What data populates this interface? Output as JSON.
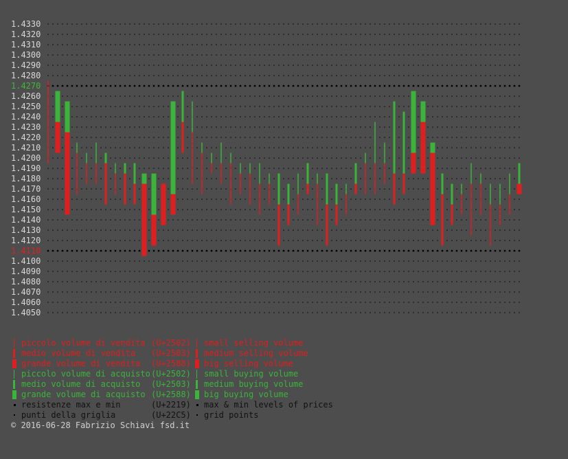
{
  "colors": {
    "background": "#4d4d4d",
    "tick": "#d9d9d9",
    "max_label": "#3cb83c",
    "min_label": "#e02020",
    "sell": "#e01e1e",
    "buy": "#3cb43c",
    "grid": "#1e1e1e",
    "legend_neutral": "#111111",
    "copyright": "#d0d0d0"
  },
  "chart_data": {
    "type": "bar",
    "ylim": [
      1.405,
      1.433
    ],
    "y_tick_step": 0.001,
    "y_tick_labels": [
      "1.4330",
      "1.4320",
      "1.4310",
      "1.4300",
      "1.4290",
      "1.4280",
      "1.4270",
      "1.4260",
      "1.4250",
      "1.4240",
      "1.4230",
      "1.4220",
      "1.4210",
      "1.4200",
      "1.4190",
      "1.4180",
      "1.4170",
      "1.4160",
      "1.4150",
      "1.4140",
      "1.4130",
      "1.4120",
      "1.4110",
      "1.4100",
      "1.4090",
      "1.4080",
      "1.4070",
      "1.4060",
      "1.4050"
    ],
    "max_level": 1.427,
    "min_level": 1.411,
    "num_columns": 50,
    "grid": true,
    "volume_levels": [
      "small",
      "medium",
      "big"
    ],
    "candles": [
      {
        "x": 0,
        "segments": [
          {
            "from": 1.4195,
            "to": 1.4275,
            "side": "sell",
            "volume": "small"
          }
        ]
      },
      {
        "x": 1,
        "segments": [
          {
            "from": 1.4205,
            "to": 1.4235,
            "side": "sell",
            "volume": "big"
          },
          {
            "from": 1.4235,
            "to": 1.4265,
            "side": "buy",
            "volume": "big"
          }
        ]
      },
      {
        "x": 2,
        "segments": [
          {
            "from": 1.4145,
            "to": 1.4225,
            "side": "sell",
            "volume": "big"
          },
          {
            "from": 1.4225,
            "to": 1.4255,
            "side": "buy",
            "volume": "big"
          }
        ]
      },
      {
        "x": 3,
        "segments": [
          {
            "from": 1.4165,
            "to": 1.4205,
            "side": "sell",
            "volume": "small"
          },
          {
            "from": 1.4205,
            "to": 1.4215,
            "side": "buy",
            "volume": "small"
          }
        ]
      },
      {
        "x": 4,
        "segments": [
          {
            "from": 1.4175,
            "to": 1.4195,
            "side": "sell",
            "volume": "small"
          },
          {
            "from": 1.4195,
            "to": 1.4205,
            "side": "buy",
            "volume": "small"
          }
        ]
      },
      {
        "x": 5,
        "segments": [
          {
            "from": 1.4175,
            "to": 1.4195,
            "side": "sell",
            "volume": "small"
          },
          {
            "from": 1.4195,
            "to": 1.4215,
            "side": "buy",
            "volume": "small"
          }
        ]
      },
      {
        "x": 6,
        "segments": [
          {
            "from": 1.4155,
            "to": 1.4195,
            "side": "sell",
            "volume": "medium"
          },
          {
            "from": 1.4195,
            "to": 1.4205,
            "side": "buy",
            "volume": "medium"
          }
        ]
      },
      {
        "x": 7,
        "segments": [
          {
            "from": 1.4165,
            "to": 1.4185,
            "side": "sell",
            "volume": "small"
          },
          {
            "from": 1.4185,
            "to": 1.4195,
            "side": "buy",
            "volume": "small"
          }
        ]
      },
      {
        "x": 8,
        "segments": [
          {
            "from": 1.4155,
            "to": 1.4185,
            "side": "sell",
            "volume": "medium"
          },
          {
            "from": 1.4185,
            "to": 1.4195,
            "side": "buy",
            "volume": "medium"
          }
        ]
      },
      {
        "x": 9,
        "segments": [
          {
            "from": 1.4155,
            "to": 1.4175,
            "side": "sell",
            "volume": "medium"
          },
          {
            "from": 1.4175,
            "to": 1.4195,
            "side": "buy",
            "volume": "medium"
          }
        ]
      },
      {
        "x": 10,
        "segments": [
          {
            "from": 1.4105,
            "to": 1.4175,
            "side": "sell",
            "volume": "big"
          },
          {
            "from": 1.4175,
            "to": 1.4185,
            "side": "buy",
            "volume": "big"
          }
        ]
      },
      {
        "x": 11,
        "segments": [
          {
            "from": 1.4115,
            "to": 1.4145,
            "side": "sell",
            "volume": "big"
          },
          {
            "from": 1.4145,
            "to": 1.4185,
            "side": "buy",
            "volume": "big"
          }
        ]
      },
      {
        "x": 12,
        "segments": [
          {
            "from": 1.4135,
            "to": 1.4175,
            "side": "sell",
            "volume": "big"
          }
        ]
      },
      {
        "x": 13,
        "segments": [
          {
            "from": 1.4145,
            "to": 1.4165,
            "side": "sell",
            "volume": "big"
          },
          {
            "from": 1.4165,
            "to": 1.4255,
            "side": "buy",
            "volume": "big"
          }
        ]
      },
      {
        "x": 14,
        "segments": [
          {
            "from": 1.4205,
            "to": 1.4235,
            "side": "sell",
            "volume": "medium"
          },
          {
            "from": 1.4235,
            "to": 1.4265,
            "side": "buy",
            "volume": "medium"
          }
        ]
      },
      {
        "x": 15,
        "segments": [
          {
            "from": 1.4175,
            "to": 1.4225,
            "side": "sell",
            "volume": "small"
          },
          {
            "from": 1.4225,
            "to": 1.4255,
            "side": "buy",
            "volume": "small"
          }
        ]
      },
      {
        "x": 16,
        "segments": [
          {
            "from": 1.4165,
            "to": 1.4205,
            "side": "sell",
            "volume": "small"
          },
          {
            "from": 1.4205,
            "to": 1.4215,
            "side": "buy",
            "volume": "small"
          }
        ]
      },
      {
        "x": 17,
        "segments": [
          {
            "from": 1.4185,
            "to": 1.4195,
            "side": "sell",
            "volume": "small"
          },
          {
            "from": 1.4195,
            "to": 1.4205,
            "side": "buy",
            "volume": "small"
          }
        ]
      },
      {
        "x": 18,
        "segments": [
          {
            "from": 1.4175,
            "to": 1.4195,
            "side": "sell",
            "volume": "small"
          },
          {
            "from": 1.4195,
            "to": 1.4215,
            "side": "buy",
            "volume": "small"
          }
        ]
      },
      {
        "x": 19,
        "segments": [
          {
            "from": 1.4155,
            "to": 1.4195,
            "side": "sell",
            "volume": "small"
          },
          {
            "from": 1.4195,
            "to": 1.4205,
            "side": "buy",
            "volume": "small"
          }
        ]
      },
      {
        "x": 20,
        "segments": [
          {
            "from": 1.4165,
            "to": 1.4185,
            "side": "sell",
            "volume": "small"
          },
          {
            "from": 1.4185,
            "to": 1.4195,
            "side": "buy",
            "volume": "small"
          }
        ]
      },
      {
        "x": 21,
        "segments": [
          {
            "from": 1.4155,
            "to": 1.4185,
            "side": "sell",
            "volume": "small"
          },
          {
            "from": 1.4185,
            "to": 1.4195,
            "side": "buy",
            "volume": "small"
          }
        ]
      },
      {
        "x": 22,
        "segments": [
          {
            "from": 1.4145,
            "to": 1.4175,
            "side": "sell",
            "volume": "small"
          },
          {
            "from": 1.4175,
            "to": 1.4195,
            "side": "buy",
            "volume": "small"
          }
        ]
      },
      {
        "x": 23,
        "segments": [
          {
            "from": 1.4155,
            "to": 1.4175,
            "side": "sell",
            "volume": "small"
          },
          {
            "from": 1.4175,
            "to": 1.4185,
            "side": "buy",
            "volume": "small"
          }
        ]
      },
      {
        "x": 24,
        "segments": [
          {
            "from": 1.4115,
            "to": 1.4155,
            "side": "sell",
            "volume": "medium"
          },
          {
            "from": 1.4155,
            "to": 1.4185,
            "side": "buy",
            "volume": "medium"
          }
        ]
      },
      {
        "x": 25,
        "segments": [
          {
            "from": 1.4135,
            "to": 1.4155,
            "side": "sell",
            "volume": "medium"
          },
          {
            "from": 1.4155,
            "to": 1.4175,
            "side": "buy",
            "volume": "medium"
          }
        ]
      },
      {
        "x": 26,
        "segments": [
          {
            "from": 1.4145,
            "to": 1.4165,
            "side": "sell",
            "volume": "small"
          },
          {
            "from": 1.4165,
            "to": 1.4185,
            "side": "buy",
            "volume": "small"
          }
        ]
      },
      {
        "x": 27,
        "segments": [
          {
            "from": 1.4165,
            "to": 1.4175,
            "side": "sell",
            "volume": "medium"
          },
          {
            "from": 1.4175,
            "to": 1.4195,
            "side": "buy",
            "volume": "medium"
          }
        ]
      },
      {
        "x": 28,
        "segments": [
          {
            "from": 1.4135,
            "to": 1.4175,
            "side": "sell",
            "volume": "small"
          },
          {
            "from": 1.4175,
            "to": 1.4185,
            "side": "buy",
            "volume": "small"
          }
        ]
      },
      {
        "x": 29,
        "segments": [
          {
            "from": 1.4115,
            "to": 1.4155,
            "side": "sell",
            "volume": "medium"
          },
          {
            "from": 1.4155,
            "to": 1.4185,
            "side": "buy",
            "volume": "medium"
          }
        ]
      },
      {
        "x": 30,
        "segments": [
          {
            "from": 1.4135,
            "to": 1.4155,
            "side": "sell",
            "volume": "medium"
          },
          {
            "from": 1.4155,
            "to": 1.4175,
            "side": "buy",
            "volume": "medium"
          }
        ]
      },
      {
        "x": 31,
        "segments": [
          {
            "from": 1.4145,
            "to": 1.4165,
            "side": "sell",
            "volume": "small"
          },
          {
            "from": 1.4165,
            "to": 1.4175,
            "side": "buy",
            "volume": "small"
          }
        ]
      },
      {
        "x": 32,
        "segments": [
          {
            "from": 1.4165,
            "to": 1.4175,
            "side": "sell",
            "volume": "medium"
          },
          {
            "from": 1.4175,
            "to": 1.4195,
            "side": "buy",
            "volume": "medium"
          }
        ]
      },
      {
        "x": 33,
        "segments": [
          {
            "from": 1.4165,
            "to": 1.4195,
            "side": "sell",
            "volume": "small"
          },
          {
            "from": 1.4195,
            "to": 1.4205,
            "side": "buy",
            "volume": "small"
          }
        ]
      },
      {
        "x": 34,
        "segments": [
          {
            "from": 1.4165,
            "to": 1.4195,
            "side": "sell",
            "volume": "small"
          },
          {
            "from": 1.4195,
            "to": 1.4235,
            "side": "buy",
            "volume": "small"
          }
        ]
      },
      {
        "x": 35,
        "segments": [
          {
            "from": 1.4175,
            "to": 1.4195,
            "side": "sell",
            "volume": "small"
          },
          {
            "from": 1.4195,
            "to": 1.4215,
            "side": "buy",
            "volume": "small"
          }
        ]
      },
      {
        "x": 36,
        "segments": [
          {
            "from": 1.4155,
            "to": 1.4185,
            "side": "sell",
            "volume": "medium"
          },
          {
            "from": 1.4185,
            "to": 1.4255,
            "side": "buy",
            "volume": "medium"
          }
        ]
      },
      {
        "x": 37,
        "segments": [
          {
            "from": 1.4165,
            "to": 1.4185,
            "side": "sell",
            "volume": "medium"
          },
          {
            "from": 1.4185,
            "to": 1.4245,
            "side": "buy",
            "volume": "medium"
          }
        ]
      },
      {
        "x": 38,
        "segments": [
          {
            "from": 1.4185,
            "to": 1.4205,
            "side": "sell",
            "volume": "big"
          },
          {
            "from": 1.4205,
            "to": 1.4265,
            "side": "buy",
            "volume": "big"
          }
        ]
      },
      {
        "x": 39,
        "segments": [
          {
            "from": 1.4185,
            "to": 1.4235,
            "side": "sell",
            "volume": "big"
          },
          {
            "from": 1.4235,
            "to": 1.4255,
            "side": "buy",
            "volume": "big"
          }
        ]
      },
      {
        "x": 40,
        "segments": [
          {
            "from": 1.4135,
            "to": 1.4205,
            "side": "sell",
            "volume": "big"
          },
          {
            "from": 1.4205,
            "to": 1.4215,
            "side": "buy",
            "volume": "big"
          }
        ]
      },
      {
        "x": 41,
        "segments": [
          {
            "from": 1.4115,
            "to": 1.4165,
            "side": "sell",
            "volume": "medium"
          },
          {
            "from": 1.4165,
            "to": 1.4185,
            "side": "buy",
            "volume": "medium"
          }
        ]
      },
      {
        "x": 42,
        "segments": [
          {
            "from": 1.4135,
            "to": 1.4155,
            "side": "sell",
            "volume": "medium"
          },
          {
            "from": 1.4155,
            "to": 1.4175,
            "side": "buy",
            "volume": "medium"
          }
        ]
      },
      {
        "x": 43,
        "segments": [
          {
            "from": 1.4145,
            "to": 1.4165,
            "side": "sell",
            "volume": "small"
          },
          {
            "from": 1.4165,
            "to": 1.4175,
            "side": "buy",
            "volume": "small"
          }
        ]
      },
      {
        "x": 44,
        "segments": [
          {
            "from": 1.4125,
            "to": 1.4175,
            "side": "sell",
            "volume": "small"
          },
          {
            "from": 1.4175,
            "to": 1.4195,
            "side": "buy",
            "volume": "small"
          }
        ]
      },
      {
        "x": 45,
        "segments": [
          {
            "from": 1.4145,
            "to": 1.4175,
            "side": "sell",
            "volume": "small"
          },
          {
            "from": 1.4175,
            "to": 1.4185,
            "side": "buy",
            "volume": "small"
          }
        ]
      },
      {
        "x": 46,
        "segments": [
          {
            "from": 1.4115,
            "to": 1.4155,
            "side": "sell",
            "volume": "small"
          },
          {
            "from": 1.4155,
            "to": 1.4175,
            "side": "buy",
            "volume": "small"
          }
        ]
      },
      {
        "x": 47,
        "segments": [
          {
            "from": 1.4135,
            "to": 1.4155,
            "side": "sell",
            "volume": "small"
          },
          {
            "from": 1.4155,
            "to": 1.4175,
            "side": "buy",
            "volume": "small"
          }
        ]
      },
      {
        "x": 48,
        "segments": [
          {
            "from": 1.4145,
            "to": 1.4165,
            "side": "sell",
            "volume": "small"
          },
          {
            "from": 1.4165,
            "to": 1.4185,
            "side": "buy",
            "volume": "small"
          }
        ]
      },
      {
        "x": 49,
        "segments": [
          {
            "from": 1.4165,
            "to": 1.4175,
            "side": "sell",
            "volume": "big"
          },
          {
            "from": 1.4175,
            "to": 1.4195,
            "side": "buy",
            "volume": "medium"
          }
        ]
      }
    ]
  },
  "legend": {
    "rows": [
      {
        "kind": "sell",
        "volume": "small",
        "it": "piccolo volume di vendita",
        "code": "(U+2502)",
        "en": "small selling volume"
      },
      {
        "kind": "sell",
        "volume": "medium",
        "it": "medio volume di vendita",
        "code": "(U+2503)",
        "en": "medium selling volume"
      },
      {
        "kind": "sell",
        "volume": "big",
        "it": "grande volume di vendita",
        "code": "(U+2588)",
        "en": "big selling volume"
      },
      {
        "kind": "buy",
        "volume": "small",
        "it": "piccolo volume di acquisto",
        "code": "(U+2502)",
        "en": "small buying volume"
      },
      {
        "kind": "buy",
        "volume": "medium",
        "it": "medio volume di acquisto",
        "code": "(U+2503)",
        "en": "medium buying volume"
      },
      {
        "kind": "buy",
        "volume": "big",
        "it": "grande volume di acquisto",
        "code": "(U+2588)",
        "en": "big buying volume"
      },
      {
        "kind": "level",
        "volume": "dot-big",
        "it": "resistenze max e min",
        "code": "(U+2219)",
        "en": "max & min levels of prices"
      },
      {
        "kind": "grid",
        "volume": "dot-small",
        "it": "punti della griglia",
        "code": "(U+22C5)",
        "en": "grid points"
      }
    ]
  },
  "copyright": "© 2016-06-28 Fabrizio Schiavi fsd.it"
}
